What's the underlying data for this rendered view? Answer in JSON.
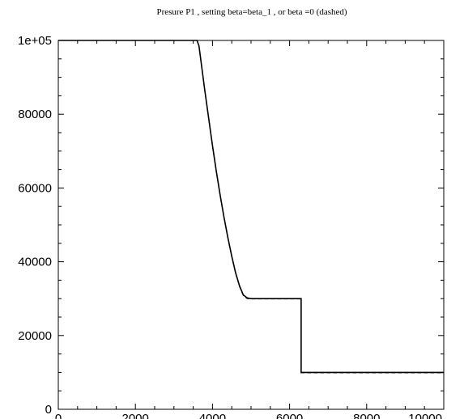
{
  "chart_data": {
    "type": "line",
    "title": "Presure P1 , setting beta=beta_1 , or beta =0 (dashed)",
    "xlabel": "",
    "ylabel": "",
    "xlim": [
      0,
      10000
    ],
    "ylim": [
      0,
      100000
    ],
    "x_ticks": [
      0,
      2000,
      4000,
      6000,
      8000,
      10000
    ],
    "x_tick_labels": [
      "0",
      "2000",
      "4000",
      "6000",
      "8000",
      "10000"
    ],
    "y_ticks": [
      0,
      20000,
      40000,
      60000,
      80000,
      100000
    ],
    "y_tick_labels": [
      "0",
      "20000",
      "40000",
      "60000",
      "80000",
      "1e+05"
    ],
    "grid": false,
    "series": [
      {
        "style": "solid",
        "color": "#000000",
        "x": [
          0,
          3600,
          3650,
          3700,
          3800,
          3900,
          4000,
          4100,
          4200,
          4300,
          4400,
          4500,
          4600,
          4700,
          4800,
          4900,
          5000,
          6300,
          6300,
          10000
        ],
        "y": [
          100000,
          100000,
          98500,
          94500,
          86500,
          79000,
          71500,
          64500,
          58000,
          52000,
          46500,
          41500,
          37000,
          33500,
          31000,
          30200,
          30000,
          30000,
          10000,
          10000
        ]
      },
      {
        "style": "dashed",
        "color": "#000000",
        "x": [
          0,
          3600,
          3650,
          3700,
          3800,
          3900,
          4000,
          4100,
          4200,
          4300,
          4400,
          4500,
          4600,
          4700,
          4800,
          4900,
          5000,
          6300,
          6300,
          10000
        ],
        "y": [
          100000,
          100000,
          98400,
          94300,
          86300,
          78800,
          71300,
          64300,
          57800,
          51800,
          46300,
          41300,
          36800,
          33300,
          30800,
          30000,
          29900,
          29900,
          9900,
          9900
        ]
      }
    ]
  }
}
